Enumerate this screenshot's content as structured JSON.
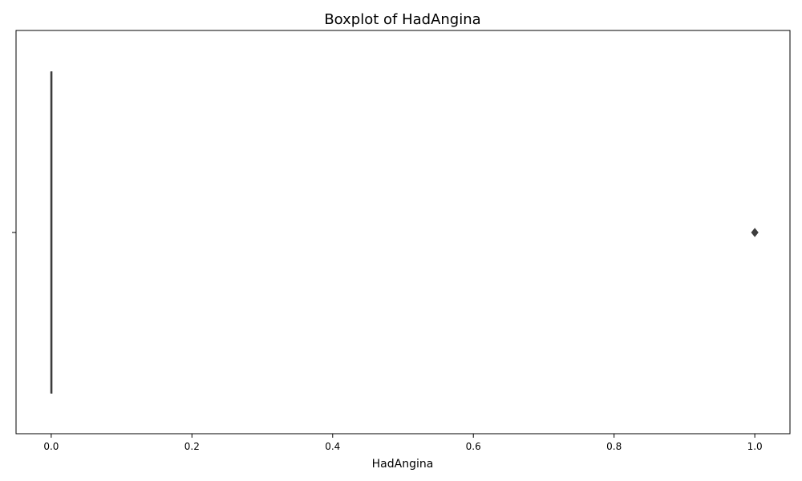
{
  "chart_data": {
    "type": "box",
    "orientation": "horizontal",
    "title": "Boxplot of HadAngina",
    "xlabel": "HadAngina",
    "ylabel": "",
    "xlim": [
      -0.05,
      1.05
    ],
    "xticks": [
      0.0,
      0.2,
      0.4,
      0.6,
      0.8,
      1.0
    ],
    "xtick_labels": [
      "0.0",
      "0.2",
      "0.4",
      "0.6",
      "0.8",
      "1.0"
    ],
    "grid": false,
    "series": [
      {
        "name": "HadAngina",
        "min": 0.0,
        "q1": 0.0,
        "median": 0.0,
        "q3": 0.0,
        "max": 0.0,
        "outliers": [
          1.0
        ]
      }
    ],
    "colors": {
      "box": "#3d3d3d",
      "outlier": "#3d3d3d",
      "axis": "#000000"
    }
  }
}
